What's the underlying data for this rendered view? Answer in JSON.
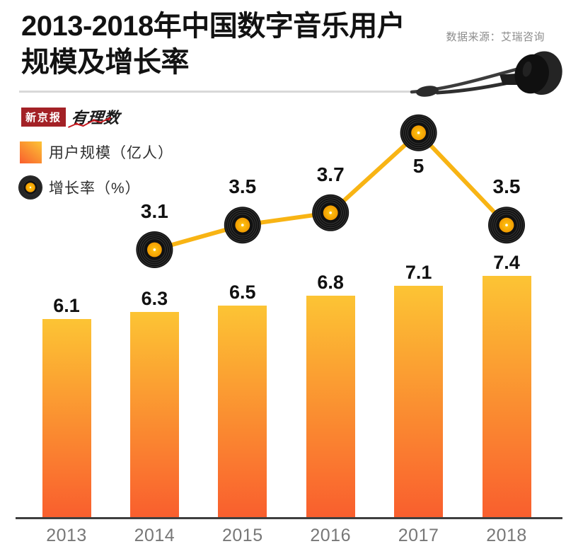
{
  "header": {
    "title_line1": "2013-2018年中国数字音乐用户",
    "title_line2": "规模及增长率",
    "source": "数据来源：艾瑞咨询"
  },
  "branding": {
    "paper_name": "新京报",
    "column_name": "有理数"
  },
  "legend": {
    "bar_label": "用户规模（亿人）",
    "line_label": "增长率（%）"
  },
  "chart_data": {
    "type": "bar+line combo",
    "title": "2013-2018年中国数字音乐用户规模及增长率",
    "categories": [
      "2013",
      "2014",
      "2015",
      "2016",
      "2017",
      "2018"
    ],
    "series": [
      {
        "name": "用户规模（亿人）",
        "type": "bar",
        "values": [
          6.1,
          6.3,
          6.5,
          6.8,
          7.1,
          7.4
        ],
        "labels": [
          "6.1",
          "6.3",
          "6.5",
          "6.8",
          "7.1",
          "7.4"
        ]
      },
      {
        "name": "增长率（%）",
        "type": "line",
        "categories": [
          "2014",
          "2015",
          "2016",
          "2017",
          "2018"
        ],
        "values": [
          3.1,
          3.5,
          3.7,
          5,
          3.5
        ],
        "labels": [
          "3.1",
          "3.5",
          "3.7",
          "5",
          "3.5"
        ],
        "label_positions": [
          "above",
          "above",
          "above",
          "below",
          "above"
        ],
        "marker": "vinyl-record"
      }
    ],
    "colors": {
      "bar_top": "#FCC434",
      "bar_bottom": "#F95E2E",
      "line": "#F8B414",
      "record_disc": "#111111",
      "record_groove": "rgba(255,255,255,0.16)",
      "record_label_center": "#FFC714",
      "record_label_edge": "#F29B00",
      "axis_line": "#3F3F3F",
      "year_label": "#777777",
      "value_label": "#111111"
    },
    "grid": false,
    "legend_position": "top-left"
  }
}
